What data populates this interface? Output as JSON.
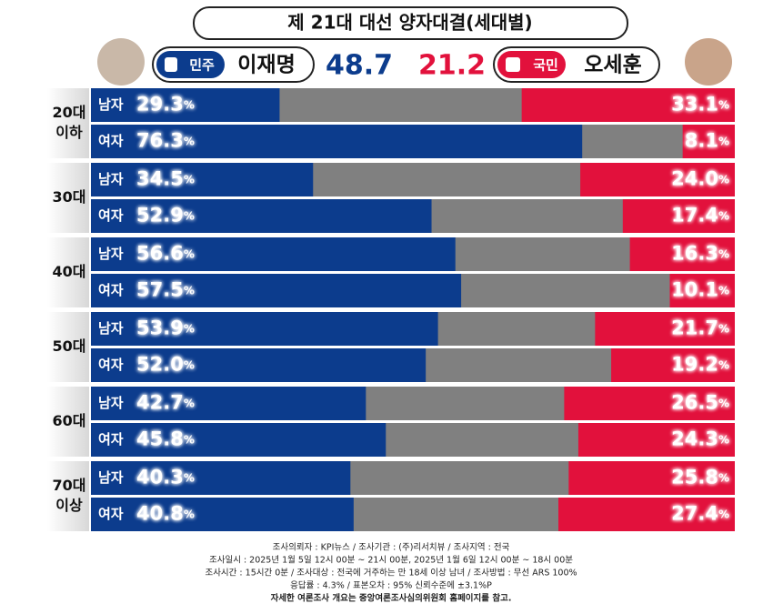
{
  "chart_data": {
    "type": "bar",
    "title": "제 21대 대선 양자대결(세대별)",
    "groups": [
      [
        "20대",
        "이하"
      ],
      [
        "30대"
      ],
      [
        "40대"
      ],
      [
        "50대"
      ],
      [
        "60대"
      ],
      [
        "70대",
        "이상"
      ]
    ],
    "categories": [
      "남자",
      "여자",
      "남자",
      "여자",
      "남자",
      "여자",
      "남자",
      "여자",
      "남자",
      "여자",
      "남자",
      "여자"
    ],
    "xlim": [
      0,
      100
    ],
    "series": [
      {
        "name": "이재명",
        "party": "민주",
        "total": 48.7,
        "color": "#0c3c8d",
        "values": [
          29.3,
          76.3,
          34.5,
          52.9,
          56.6,
          57.5,
          53.9,
          52.0,
          42.7,
          45.8,
          40.3,
          40.8
        ],
        "value_labels": [
          "29.3%",
          "76.3%",
          "34.5%",
          "52.9%",
          "56.6%",
          "57.5%",
          "53.9%",
          "52.0%",
          "42.7%",
          "45.8%",
          "40.3%",
          "40.8%"
        ]
      },
      {
        "name": "오세훈",
        "party": "국민",
        "total": 21.2,
        "color": "#e2113c",
        "values": [
          33.1,
          8.1,
          24.0,
          17.4,
          16.3,
          10.1,
          21.7,
          19.2,
          26.5,
          24.3,
          25.8,
          27.4
        ],
        "value_labels": [
          "33.1%",
          "8.1%",
          "24.0%",
          "17.4%",
          "16.3%",
          "10.1%",
          "21.7%",
          "19.2%",
          "26.5%",
          "24.3%",
          "25.8%",
          "27.4%"
        ]
      }
    ],
    "notes": [
      "조사의뢰자 : KPI뉴스 / 조사기관 : (주)리서치뷰 / 조사지역 : 전국",
      "조사일시 : 2025년 1월 5일 12시 00분 ~ 21시 00분, 2025년 1월 6일 12시 00분 ~ 18시 00분",
      "조사시간 : 15시간 0분 / 조사대상 : 전국에 거주하는 만 18세 이상 남녀 / 조사방법 : 무선 ARS 100%",
      "응답률 : 4.3% / 표본오차 : 95% 신뢰수준에 ±3.1%P",
      "자세한 여론조사 개요는 중앙여론조사심의위원회 홈페이지를 참고."
    ]
  }
}
